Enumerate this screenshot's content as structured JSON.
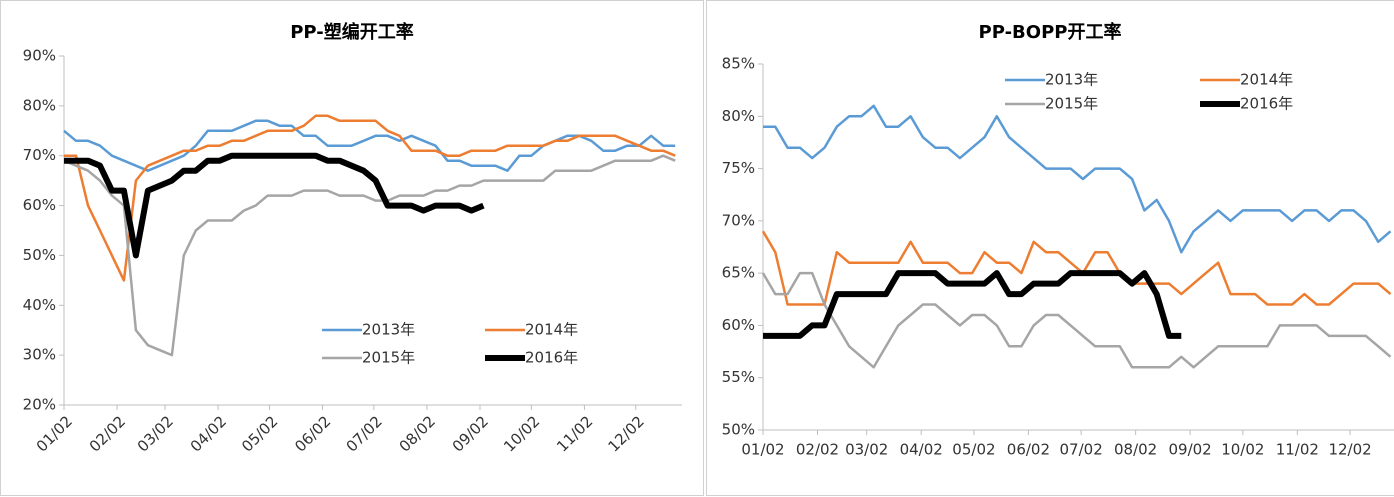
{
  "chart_data": [
    {
      "type": "line",
      "title": "PP-塑编开工率",
      "x": [
        0,
        7,
        14,
        21,
        28,
        35,
        42,
        49,
        56,
        63,
        70,
        77,
        84,
        91,
        98,
        105,
        112,
        119,
        126,
        133,
        140,
        147,
        154,
        161,
        168,
        175,
        182,
        189,
        196,
        203,
        210,
        217,
        224,
        231,
        238,
        245,
        252,
        259,
        266,
        273,
        280,
        287,
        294,
        301,
        308,
        315,
        322,
        329,
        336,
        343,
        350,
        357
      ],
      "xlim": [
        0,
        361
      ],
      "xticks": [
        {
          "value": 0,
          "label": "01/02"
        },
        {
          "value": 31,
          "label": "02/02"
        },
        {
          "value": 59,
          "label": "03/02"
        },
        {
          "value": 90,
          "label": "04/02"
        },
        {
          "value": 120,
          "label": "05/02"
        },
        {
          "value": 151,
          "label": "06/02"
        },
        {
          "value": 181,
          "label": "07/02"
        },
        {
          "value": 212,
          "label": "08/02"
        },
        {
          "value": 243,
          "label": "09/02"
        },
        {
          "value": 273,
          "label": "10/02"
        },
        {
          "value": 304,
          "label": "11/02"
        },
        {
          "value": 334,
          "label": "12/02"
        }
      ],
      "ylim": [
        20,
        90
      ],
      "yticks": [
        {
          "value": 20,
          "label": "20%"
        },
        {
          "value": 30,
          "label": "30%"
        },
        {
          "value": 40,
          "label": "40%"
        },
        {
          "value": 50,
          "label": "50%"
        },
        {
          "value": 60,
          "label": "60%"
        },
        {
          "value": 70,
          "label": "70%"
        },
        {
          "value": 80,
          "label": "80%"
        },
        {
          "value": 90,
          "label": "90%"
        }
      ],
      "series": [
        {
          "name": "2013年",
          "color": "#5b9bd5",
          "values": [
            75,
            73,
            73,
            72,
            70,
            69,
            68,
            67,
            68,
            69,
            70,
            72,
            75,
            75,
            75,
            76,
            77,
            77,
            76,
            76,
            74,
            74,
            72,
            72,
            72,
            73,
            74,
            74,
            73,
            74,
            73,
            72,
            69,
            69,
            68,
            68,
            68,
            67,
            70,
            70,
            72,
            73,
            74,
            74,
            73,
            71,
            71,
            72,
            72,
            74,
            72,
            72
          ]
        },
        {
          "name": "2014年",
          "color": "#ed7d31",
          "values": [
            70,
            70,
            60,
            55,
            50,
            45,
            65,
            68,
            69,
            70,
            71,
            71,
            72,
            72,
            73,
            73,
            74,
            75,
            75,
            75,
            76,
            78,
            78,
            77,
            77,
            77,
            77,
            75,
            74,
            71,
            71,
            71,
            70,
            70,
            71,
            71,
            71,
            72,
            72,
            72,
            72,
            73,
            73,
            74,
            74,
            74,
            74,
            73,
            72,
            71,
            71,
            70
          ]
        },
        {
          "name": "2015年",
          "color": "#a5a5a5",
          "values": [
            69,
            68,
            67,
            65,
            62,
            60,
            35,
            32,
            31,
            30,
            50,
            55,
            57,
            57,
            57,
            59,
            60,
            62,
            62,
            62,
            63,
            63,
            63,
            62,
            62,
            62,
            61,
            61,
            62,
            62,
            62,
            63,
            63,
            64,
            64,
            65,
            65,
            65,
            65,
            65,
            65,
            67,
            67,
            67,
            67,
            68,
            69,
            69,
            69,
            69,
            70,
            69
          ]
        },
        {
          "name": "2016年",
          "color": "#000000",
          "values": [
            69,
            69,
            69,
            68,
            63,
            63,
            50,
            63,
            64,
            65,
            67,
            67,
            69,
            69,
            70,
            70,
            70,
            70,
            70,
            70,
            70,
            70,
            69,
            69,
            68,
            67,
            65,
            60,
            60,
            60,
            59,
            60,
            60,
            60,
            59,
            60,
            null,
            null,
            null,
            null,
            null,
            null,
            null,
            null,
            null,
            null,
            null,
            null,
            null,
            null,
            null,
            null
          ]
        }
      ]
    },
    {
      "type": "line",
      "title": "PP-BOPP开工率",
      "x": [
        0,
        7,
        14,
        21,
        28,
        35,
        42,
        49,
        56,
        63,
        70,
        77,
        84,
        91,
        98,
        105,
        112,
        119,
        126,
        133,
        140,
        147,
        154,
        161,
        168,
        175,
        182,
        189,
        196,
        203,
        210,
        217,
        224,
        231,
        238,
        245,
        252,
        259,
        266,
        273,
        280,
        287,
        294,
        301,
        308,
        315,
        322,
        329,
        336,
        343,
        350,
        357
      ],
      "xlim": [
        0,
        359
      ],
      "xticks": [
        {
          "value": 0,
          "label": "01/02"
        },
        {
          "value": 31,
          "label": "02/02"
        },
        {
          "value": 59,
          "label": "03/02"
        },
        {
          "value": 90,
          "label": "04/02"
        },
        {
          "value": 120,
          "label": "05/02"
        },
        {
          "value": 151,
          "label": "06/02"
        },
        {
          "value": 181,
          "label": "07/02"
        },
        {
          "value": 212,
          "label": "08/02"
        },
        {
          "value": 243,
          "label": "09/02"
        },
        {
          "value": 273,
          "label": "10/02"
        },
        {
          "value": 304,
          "label": "11/02"
        },
        {
          "value": 334,
          "label": "12/02"
        }
      ],
      "ylim": [
        50,
        85
      ],
      "yticks": [
        {
          "value": 50,
          "label": "50%"
        },
        {
          "value": 55,
          "label": "55%"
        },
        {
          "value": 60,
          "label": "60%"
        },
        {
          "value": 65,
          "label": "65%"
        },
        {
          "value": 70,
          "label": "70%"
        },
        {
          "value": 75,
          "label": "75%"
        },
        {
          "value": 80,
          "label": "80%"
        },
        {
          "value": 85,
          "label": "85%"
        }
      ],
      "series": [
        {
          "name": "2013年",
          "color": "#5b9bd5",
          "values": [
            79,
            79,
            77,
            77,
            76,
            77,
            79,
            80,
            80,
            81,
            79,
            79,
            80,
            78,
            77,
            77,
            76,
            77,
            78,
            80,
            78,
            77,
            76,
            75,
            75,
            75,
            74,
            75,
            75,
            75,
            74,
            71,
            72,
            70,
            67,
            69,
            70,
            71,
            70,
            71,
            71,
            71,
            71,
            70,
            71,
            71,
            70,
            71,
            71,
            70,
            68,
            69
          ]
        },
        {
          "name": "2014年",
          "color": "#ed7d31",
          "values": [
            69,
            67,
            62,
            62,
            62,
            62,
            67,
            66,
            66,
            66,
            66,
            66,
            68,
            66,
            66,
            66,
            65,
            65,
            67,
            66,
            66,
            65,
            68,
            67,
            67,
            66,
            65,
            67,
            67,
            65,
            64,
            64,
            64,
            64,
            63,
            64,
            65,
            66,
            63,
            63,
            63,
            62,
            62,
            62,
            63,
            62,
            62,
            63,
            64,
            64,
            64,
            63
          ]
        },
        {
          "name": "2015年",
          "color": "#a5a5a5",
          "values": [
            65,
            63,
            63,
            65,
            65,
            62,
            60,
            58,
            57,
            56,
            58,
            60,
            61,
            62,
            62,
            61,
            60,
            61,
            61,
            60,
            58,
            58,
            60,
            61,
            61,
            60,
            59,
            58,
            58,
            58,
            56,
            56,
            56,
            56,
            57,
            56,
            57,
            58,
            58,
            58,
            58,
            58,
            60,
            60,
            60,
            60,
            59,
            59,
            59,
            59,
            58,
            57
          ]
        },
        {
          "name": "2016年",
          "color": "#000000",
          "values": [
            59,
            59,
            59,
            59,
            60,
            60,
            63,
            63,
            63,
            63,
            63,
            65,
            65,
            65,
            65,
            64,
            64,
            64,
            64,
            65,
            63,
            63,
            64,
            64,
            64,
            65,
            65,
            65,
            65,
            65,
            64,
            65,
            63,
            59,
            59,
            null,
            null,
            null,
            null,
            null,
            null,
            null,
            null,
            null,
            null,
            null,
            null,
            null,
            null,
            null,
            null,
            null
          ]
        }
      ]
    }
  ]
}
